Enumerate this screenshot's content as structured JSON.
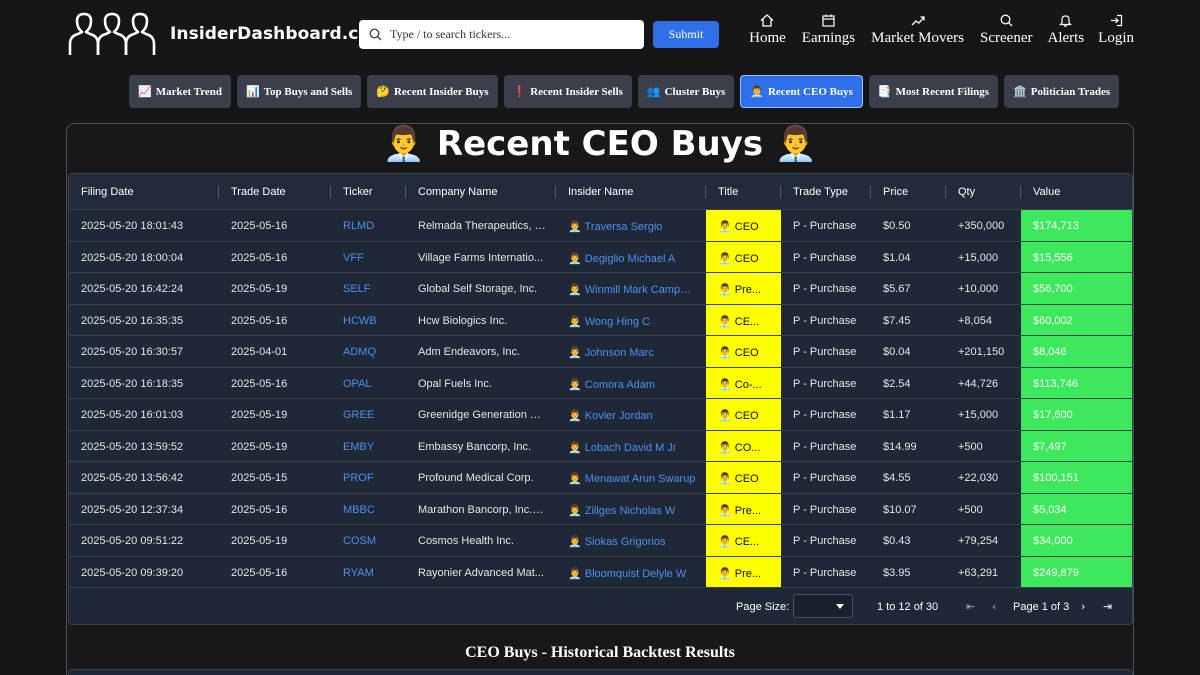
{
  "header": {
    "logo_text": "InsiderDashboard.com",
    "search_placeholder": "Type / to search tickers...",
    "submit_label": "Submit",
    "nav": [
      {
        "label": "Home",
        "icon": "home-icon"
      },
      {
        "label": "Earnings",
        "icon": "calendar-icon"
      },
      {
        "label": "Market Movers",
        "icon": "trend-up-icon"
      },
      {
        "label": "Screener",
        "icon": "search-icon"
      },
      {
        "label": "Alerts",
        "icon": "bell-icon"
      },
      {
        "label": "Login",
        "icon": "login-icon"
      }
    ]
  },
  "tabs": [
    {
      "emoji": "📈",
      "label": "Market Trend",
      "active": false
    },
    {
      "emoji": "📊",
      "label": "Top Buys and Sells",
      "active": false
    },
    {
      "emoji": "🤔",
      "label": "Recent Insider Buys",
      "active": false
    },
    {
      "emoji": "❗",
      "label": "Recent Insider Sells",
      "active": false
    },
    {
      "emoji": "👥",
      "label": "Cluster Buys",
      "active": false
    },
    {
      "emoji": "👨‍💼",
      "label": "Recent CEO Buys",
      "active": true
    },
    {
      "emoji": "📑",
      "label": "Most Recent Filings",
      "active": false
    },
    {
      "emoji": "🏛️",
      "label": "Politician Trades",
      "active": false
    }
  ],
  "panel": {
    "title": "👨‍💼 Recent CEO Buys 👨‍💼",
    "backtest_title": "CEO Buys - Historical Backtest Results"
  },
  "table": {
    "columns": [
      "Filing Date",
      "Trade Date",
      "Ticker",
      "Company Name",
      "Insider Name",
      "Title",
      "Trade Type",
      "Price",
      "Qty",
      "Value"
    ],
    "rows": [
      [
        "2025-05-20 18:01:43",
        "2025-05-16",
        "RLMD",
        "Relmada Therapeutics, I...",
        "👨‍💼 Traversa Sergio",
        "👨‍💼 CEO",
        "P - Purchase",
        "$0.50",
        "+350,000",
        "$174,713"
      ],
      [
        "2025-05-20 18:00:04",
        "2025-05-16",
        "VFF",
        "Village Farms Internatio...",
        "👨‍💼 Degiglio Michael A",
        "👨‍💼 CEO",
        "P - Purchase",
        "$1.04",
        "+15,000",
        "$15,556"
      ],
      [
        "2025-05-20 16:42:24",
        "2025-05-19",
        "SELF",
        "Global Self Storage, Inc.",
        "👨‍💼 Winmill Mark Campbell",
        "👨‍💼 Pre...",
        "P - Purchase",
        "$5.67",
        "+10,000",
        "$56,700"
      ],
      [
        "2025-05-20 16:35:35",
        "2025-05-16",
        "HCWB",
        "Hcw Biologics Inc.",
        "👨‍💼 Wong Hing C",
        "👨‍💼 CE...",
        "P - Purchase",
        "$7.45",
        "+8,054",
        "$60,002"
      ],
      [
        "2025-05-20 16:30:57",
        "2025-04-01",
        "ADMQ",
        "Adm Endeavors, Inc.",
        "👨‍💼 Johnson Marc",
        "👨‍💼 CEO",
        "P - Purchase",
        "$0.04",
        "+201,150",
        "$8,046"
      ],
      [
        "2025-05-20 16:18:35",
        "2025-05-16",
        "OPAL",
        "Opal Fuels Inc.",
        "👨‍💼 Comora Adam",
        "👨‍💼 Co-...",
        "P - Purchase",
        "$2.54",
        "+44,726",
        "$113,746"
      ],
      [
        "2025-05-20 16:01:03",
        "2025-05-19",
        "GREE",
        "Greenidge Generation H...",
        "👨‍💼 Kovler Jordan",
        "👨‍💼 CEO",
        "P - Purchase",
        "$1.17",
        "+15,000",
        "$17,600"
      ],
      [
        "2025-05-20 13:59:52",
        "2025-05-19",
        "EMBY",
        "Embassy Bancorp, Inc.",
        "👨‍💼 Lobach David M Jr",
        "👨‍💼 CO...",
        "P - Purchase",
        "$14.99",
        "+500",
        "$7,497"
      ],
      [
        "2025-05-20 13:56:42",
        "2025-05-15",
        "PROF",
        "Profound Medical Corp.",
        "👨‍💼 Menawat Arun Swarup",
        "👨‍💼 CEO",
        "P - Purchase",
        "$4.55",
        "+22,030",
        "$100,151"
      ],
      [
        "2025-05-20 12:37:34",
        "2025-05-16",
        "MBBC",
        "Marathon Bancorp, Inc. /...",
        "👨‍💼 Zillges Nicholas W",
        "👨‍💼 Pre...",
        "P - Purchase",
        "$10.07",
        "+500",
        "$5,034"
      ],
      [
        "2025-05-20 09:51:22",
        "2025-05-19",
        "COSM",
        "Cosmos Health Inc.",
        "👨‍💼 Siokas Grigorios",
        "👨‍💼 CE...",
        "P - Purchase",
        "$0.43",
        "+79,254",
        "$34,000"
      ],
      [
        "2025-05-20 09:39:20",
        "2025-05-16",
        "RYAM",
        "Rayonier Advanced Mat...",
        "👨‍💼 Bloomquist Delyle W",
        "👨‍💼 Pre...",
        "P - Purchase",
        "$3.95",
        "+63,291",
        "$249,879"
      ]
    ]
  },
  "pagination": {
    "page_size_label": "Page Size:",
    "range_text": "1 to 12 of 30",
    "page_text": "Page 1 of 3"
  },
  "colors": {
    "accent": "#2f6fe8",
    "title_highlight": "#ffff00",
    "value_highlight": "#3de85c",
    "link": "#4d8ff0"
  }
}
